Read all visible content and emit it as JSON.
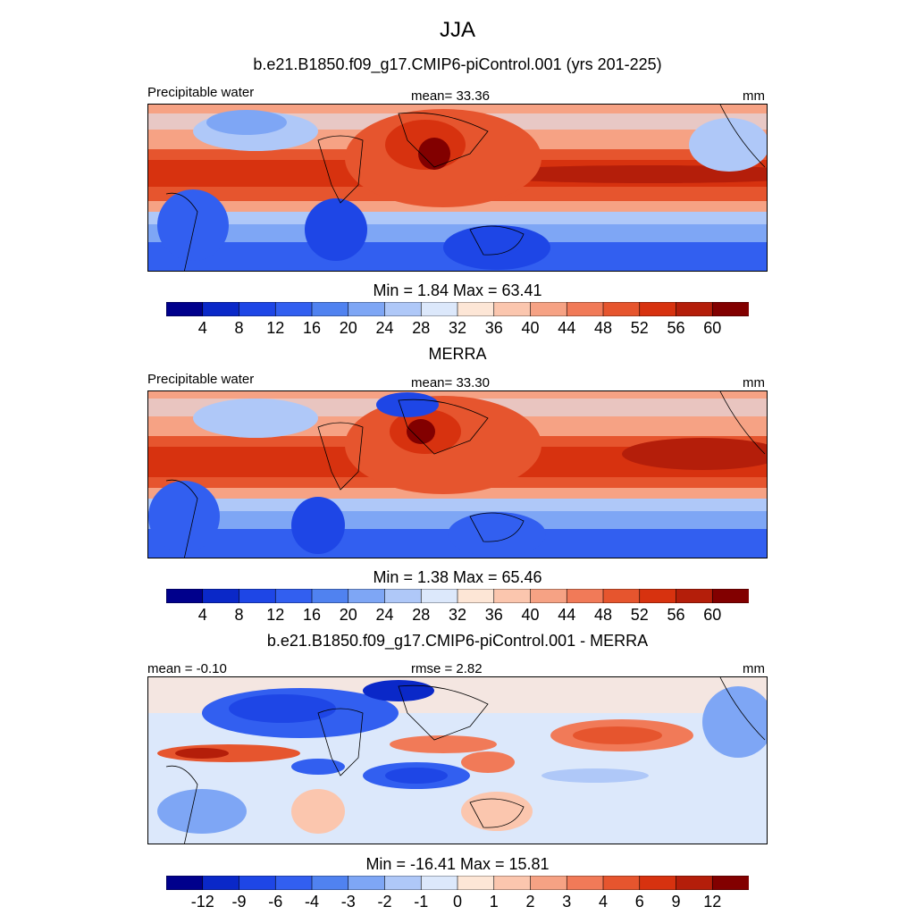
{
  "title": "JJA",
  "panels": [
    {
      "heading": "b.e21.B1850.f09_g17.CMIP6-piControl.001 (yrs 201-225)",
      "left_label": "Precipitable water",
      "center_label": "mean=  33.36",
      "units": "mm",
      "stats": "Min =   1.84 Max =  63.41",
      "colors": [
        "#00008c",
        "#0a28c8",
        "#1e46e6",
        "#325ff0",
        "#5082f0",
        "#7ea6f5",
        "#afc8f8",
        "#dce8fb",
        "#fde6d6",
        "#fbc6ae",
        "#f6a284",
        "#f17a58",
        "#e6552e",
        "#d7320f",
        "#b41e0a",
        "#820000"
      ],
      "ticks": [
        "4",
        "8",
        "12",
        "16",
        "20",
        "24",
        "28",
        "32",
        "36",
        "40",
        "44",
        "48",
        "52",
        "56",
        "60"
      ]
    },
    {
      "heading": "MERRA",
      "left_label": "Precipitable water",
      "center_label": "mean=  33.30",
      "units": "mm",
      "stats": "Min =   1.38 Max =  65.46",
      "colors": [
        "#00008c",
        "#0a28c8",
        "#1e46e6",
        "#325ff0",
        "#5082f0",
        "#7ea6f5",
        "#afc8f8",
        "#dce8fb",
        "#fde6d6",
        "#fbc6ae",
        "#f6a284",
        "#f17a58",
        "#e6552e",
        "#d7320f",
        "#b41e0a",
        "#820000"
      ],
      "ticks": [
        "4",
        "8",
        "12",
        "16",
        "20",
        "24",
        "28",
        "32",
        "36",
        "40",
        "44",
        "48",
        "52",
        "56",
        "60"
      ]
    },
    {
      "heading": "b.e21.B1850.f09_g17.CMIP6-piControl.001 - MERRA",
      "left_label": "mean =  -0.10",
      "center_label": "rmse =   2.82",
      "units": "mm",
      "stats": "Min = -16.41 Max =  15.81",
      "colors": [
        "#00008c",
        "#0a28c8",
        "#1e46e6",
        "#325ff0",
        "#5082f0",
        "#7ea6f5",
        "#afc8f8",
        "#dce8fb",
        "#fde6d6",
        "#fbc6ae",
        "#f6a284",
        "#f17a58",
        "#e6552e",
        "#d7320f",
        "#b41e0a",
        "#820000"
      ],
      "ticks": [
        "-12",
        "-9",
        "-6",
        "-4",
        "-3",
        "-2",
        "-1",
        "0",
        "1",
        "2",
        "3",
        "4",
        "6",
        "9",
        "12"
      ]
    }
  ]
}
